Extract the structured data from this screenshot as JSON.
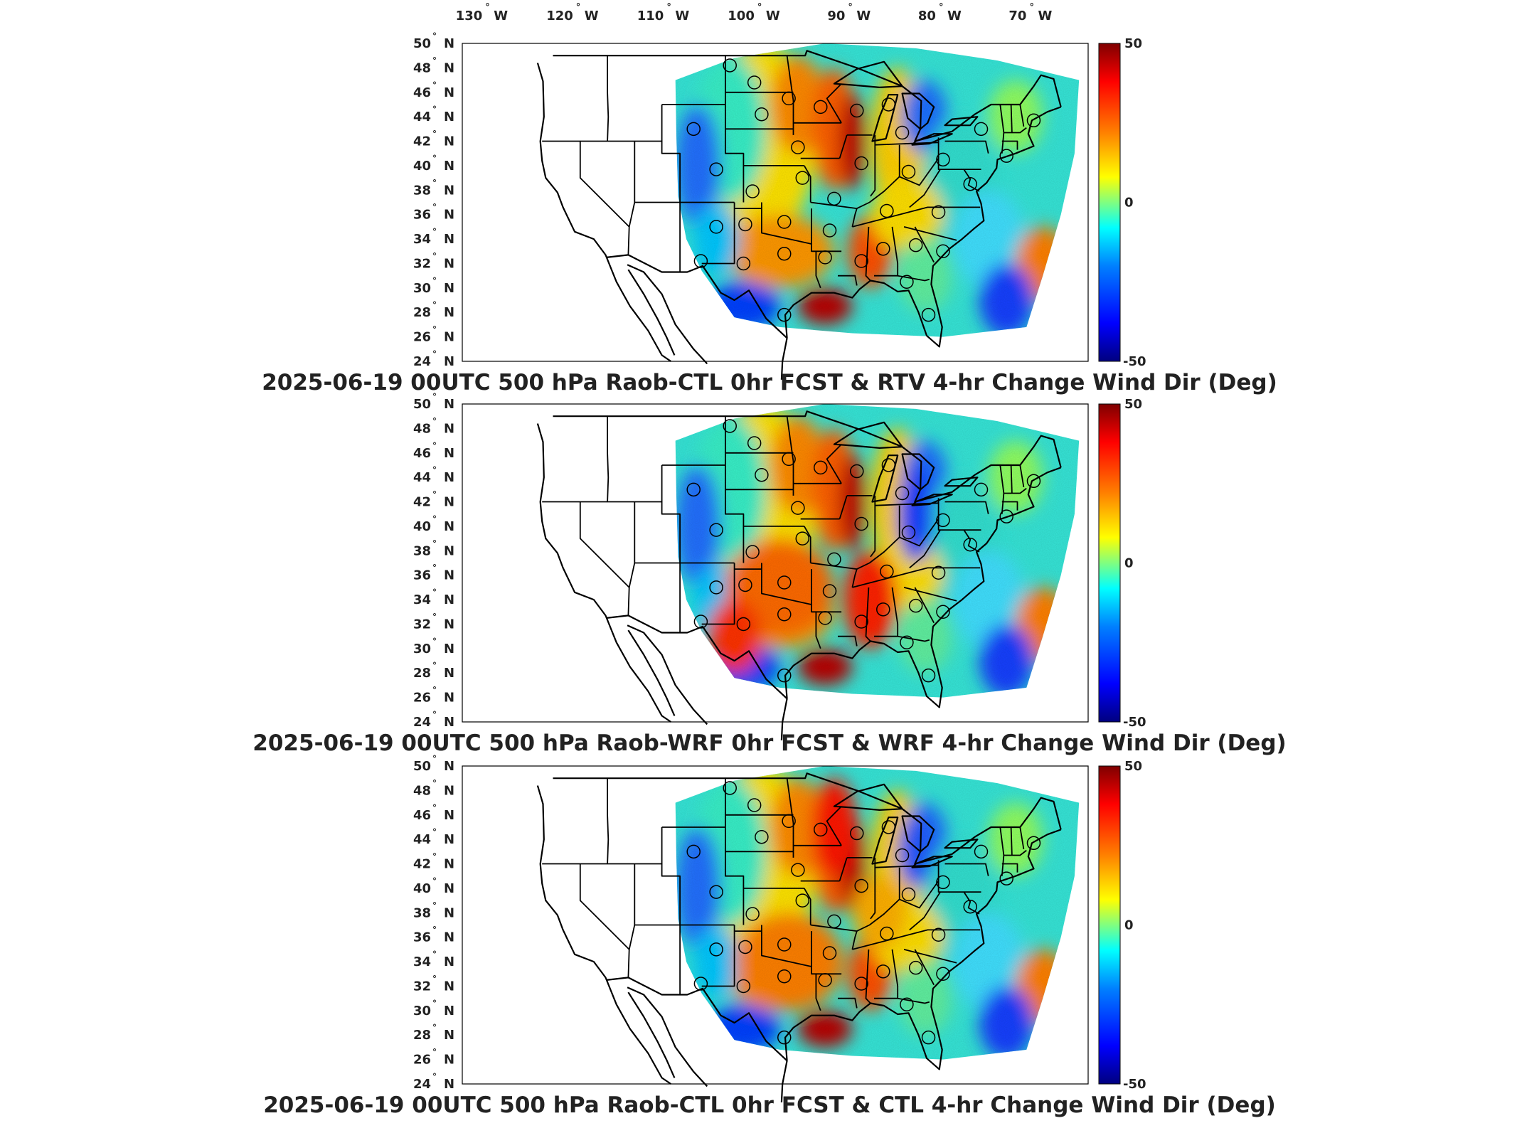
{
  "lon_labels": [
    "130",
    "120",
    "110",
    "100",
    "90",
    "80",
    "70"
  ],
  "lon_hemisphere": "W",
  "lat_labels": [
    "50",
    "48",
    "46",
    "44",
    "42",
    "40",
    "38",
    "36",
    "34",
    "32",
    "30",
    "28",
    "26",
    "24"
  ],
  "lat_hemisphere": "N",
  "degree_symbol": "°",
  "colorbar": {
    "max_label": "50",
    "mid_label": "0",
    "min_label": "-50",
    "colors": [
      "#00007f",
      "#0000ff",
      "#0080ff",
      "#00ffff",
      "#80ff80",
      "#ffff00",
      "#ff8000",
      "#ff0000",
      "#7f0000"
    ]
  },
  "panels": [
    {
      "title": "2025-06-19 00UTC 500 hPa Raob-CTL 0hr FCST & RTV 4-hr Change Wind Dir (Deg)"
    },
    {
      "title": "2025-06-19 00UTC 500 hPa Raob-WRF 0hr FCST & WRF 4-hr Change Wind Dir (Deg)"
    },
    {
      "title": "2025-06-19 00UTC 500 hPa Raob-CTL 0hr FCST & CTL 4-hr Change Wind Dir (Deg)"
    }
  ],
  "map_data": {
    "type": "map",
    "projection": "lat-lon",
    "lon_range": [
      -133,
      -64
    ],
    "lat_range": [
      24,
      50
    ],
    "value_range": [
      -50,
      50
    ],
    "units": "Deg",
    "stations": [
      {
        "lon": -103.5,
        "lat": 48.2
      },
      {
        "lon": -100.8,
        "lat": 46.8
      },
      {
        "lon": -97.0,
        "lat": 45.5
      },
      {
        "lon": -93.5,
        "lat": 44.8
      },
      {
        "lon": -89.5,
        "lat": 44.5
      },
      {
        "lon": -86.0,
        "lat": 45.0
      },
      {
        "lon": -107.5,
        "lat": 43.0
      },
      {
        "lon": -100.0,
        "lat": 44.2
      },
      {
        "lon": -84.5,
        "lat": 42.7
      },
      {
        "lon": -96.0,
        "lat": 41.5
      },
      {
        "lon": -89.0,
        "lat": 40.2
      },
      {
        "lon": -83.8,
        "lat": 39.5
      },
      {
        "lon": -80.0,
        "lat": 40.5
      },
      {
        "lon": -105.0,
        "lat": 39.7
      },
      {
        "lon": -101.0,
        "lat": 37.9
      },
      {
        "lon": -95.5,
        "lat": 39.0
      },
      {
        "lon": -92.0,
        "lat": 37.3
      },
      {
        "lon": -86.2,
        "lat": 36.3
      },
      {
        "lon": -80.5,
        "lat": 36.2
      },
      {
        "lon": -105.0,
        "lat": 35.0
      },
      {
        "lon": -101.8,
        "lat": 35.2
      },
      {
        "lon": -97.5,
        "lat": 35.4
      },
      {
        "lon": -92.5,
        "lat": 34.7
      },
      {
        "lon": -86.6,
        "lat": 33.2
      },
      {
        "lon": -83.0,
        "lat": 33.5
      },
      {
        "lon": -80.0,
        "lat": 33.0
      },
      {
        "lon": -106.7,
        "lat": 32.2
      },
      {
        "lon": -102.0,
        "lat": 32.0
      },
      {
        "lon": -97.5,
        "lat": 32.8
      },
      {
        "lon": -93.0,
        "lat": 32.5
      },
      {
        "lon": -89.0,
        "lat": 32.2
      },
      {
        "lon": -84.0,
        "lat": 30.5
      },
      {
        "lon": -97.5,
        "lat": 27.8
      },
      {
        "lon": -81.6,
        "lat": 27.8
      },
      {
        "lon": -77.0,
        "lat": 38.5
      },
      {
        "lon": -73.0,
        "lat": 40.8
      },
      {
        "lon": -70.0,
        "lat": 43.7
      },
      {
        "lon": -75.8,
        "lat": 43.0
      }
    ]
  }
}
